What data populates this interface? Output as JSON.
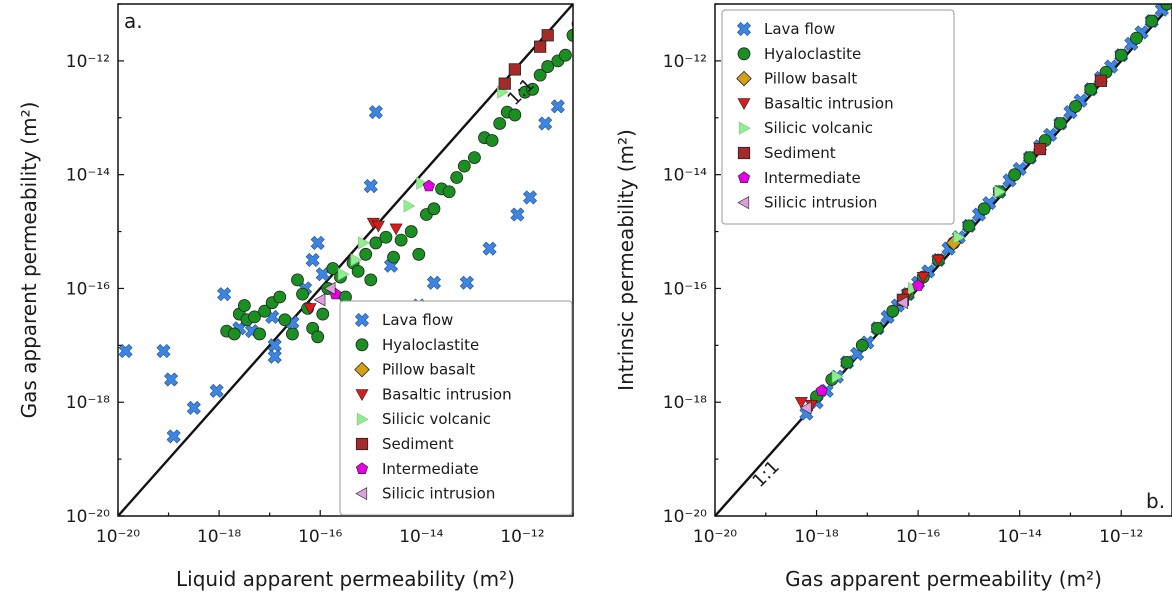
{
  "style": {
    "lava_flow": "#3d85e0",
    "hyaloclastite": "#1a8f22",
    "pillow_basalt": "#d4a017",
    "basaltic_intrusion": "#d81b1b",
    "silicic_volcanic": "#90ee90",
    "sediment": "#a52a2a",
    "intermediate": "#e600e6",
    "silicic_intrusion": "#dda0dd",
    "edge": "#1a1a1a"
  },
  "chart_data": [
    {
      "type": "scatter",
      "panel_label": "a.",
      "xlabel": "Liquid apparent permeability",
      "ylabel": "Gas apparent permeability",
      "unit": "(m²)",
      "xscale": "log",
      "yscale": "log",
      "xlim": [
        1e-20,
        1e-11
      ],
      "ylim": [
        1e-20,
        1e-11
      ],
      "xticks": [
        "10⁻²⁰",
        "10⁻¹⁸",
        "10⁻¹⁶",
        "10⁻¹⁴",
        "10⁻¹²"
      ],
      "yticks": [
        "10⁻²⁰",
        "10⁻¹⁸",
        "10⁻¹⁶",
        "10⁻¹⁴",
        "10⁻¹²"
      ],
      "reference_line": "1:1",
      "legend_position": "lower right",
      "series": [
        {
          "name": "Lava flow",
          "key": "lava_flow",
          "marker": "x",
          "points": [
            [
              -19.85,
              -17.1
            ],
            [
              -19.1,
              -17.1
            ],
            [
              -18.95,
              -17.6
            ],
            [
              -18.9,
              -18.6
            ],
            [
              -18.5,
              -18.1
            ],
            [
              -18.05,
              -17.8
            ],
            [
              -17.9,
              -16.1
            ],
            [
              -17.6,
              -16.7
            ],
            [
              -17.35,
              -16.75
            ],
            [
              -16.95,
              -16.5
            ],
            [
              -16.9,
              -17.0
            ],
            [
              -16.9,
              -17.2
            ],
            [
              -16.55,
              -16.6
            ],
            [
              -16.3,
              -16.0
            ],
            [
              -16.15,
              -15.5
            ],
            [
              -16.05,
              -15.2
            ],
            [
              -15.95,
              -15.75
            ],
            [
              -15.0,
              -14.2
            ],
            [
              -14.9,
              -12.9
            ],
            [
              -14.6,
              -15.6
            ],
            [
              -14.3,
              -16.5
            ],
            [
              -14.05,
              -16.3
            ],
            [
              -13.75,
              -15.9
            ],
            [
              -13.1,
              -15.9
            ],
            [
              -12.65,
              -15.3
            ],
            [
              -12.1,
              -14.7
            ],
            [
              -11.85,
              -14.4
            ],
            [
              -11.55,
              -13.1
            ],
            [
              -11.3,
              -12.8
            ],
            [
              -10.85,
              -13.5
            ],
            [
              -10.7,
              -12.35
            ],
            [
              -9.15,
              -11.6
            ],
            [
              -8.9,
              -11.05
            ],
            [
              -8.2,
              -9.15
            ],
            [
              -7.95,
              -12.4
            ],
            [
              -7.75,
              -12.4
            ],
            [
              -7.55,
              -12.6
            ]
          ]
        },
        {
          "name": "Hyaloclastite",
          "key": "hyaloclastite",
          "marker": "o",
          "points": [
            [
              -17.85,
              -16.75
            ],
            [
              -17.7,
              -16.8
            ],
            [
              -17.6,
              -16.45
            ],
            [
              -17.5,
              -16.3
            ],
            [
              -17.45,
              -16.55
            ],
            [
              -17.3,
              -16.5
            ],
            [
              -17.2,
              -16.8
            ],
            [
              -17.1,
              -16.4
            ],
            [
              -16.95,
              -16.25
            ],
            [
              -16.8,
              -16.15
            ],
            [
              -16.7,
              -16.55
            ],
            [
              -16.55,
              -16.8
            ],
            [
              -16.45,
              -15.85
            ],
            [
              -16.35,
              -16.1
            ],
            [
              -16.25,
              -16.35
            ],
            [
              -16.15,
              -16.7
            ],
            [
              -16.05,
              -16.85
            ],
            [
              -15.95,
              -16.45
            ],
            [
              -15.85,
              -16.0
            ],
            [
              -15.75,
              -15.65
            ],
            [
              -15.6,
              -15.8
            ],
            [
              -15.5,
              -16.15
            ],
            [
              -15.35,
              -15.55
            ],
            [
              -15.25,
              -15.7
            ],
            [
              -15.1,
              -15.4
            ],
            [
              -15.0,
              -15.85
            ],
            [
              -14.9,
              -15.2
            ],
            [
              -14.85,
              -16.35
            ],
            [
              -14.7,
              -15.1
            ],
            [
              -14.55,
              -15.45
            ],
            [
              -14.4,
              -15.15
            ],
            [
              -14.2,
              -15.0
            ],
            [
              -14.05,
              -15.4
            ],
            [
              -13.9,
              -14.7
            ],
            [
              -13.75,
              -14.6
            ],
            [
              -13.6,
              -14.25
            ],
            [
              -13.45,
              -14.3
            ],
            [
              -13.3,
              -14.05
            ],
            [
              -13.15,
              -13.85
            ],
            [
              -12.95,
              -13.7
            ],
            [
              -12.75,
              -13.35
            ],
            [
              -12.6,
              -13.4
            ],
            [
              -12.45,
              -13.1
            ],
            [
              -12.3,
              -12.9
            ],
            [
              -12.15,
              -12.95
            ],
            [
              -11.95,
              -12.55
            ],
            [
              -11.8,
              -12.5
            ],
            [
              -11.65,
              -12.25
            ],
            [
              -11.5,
              -12.1
            ],
            [
              -11.3,
              -12.0
            ],
            [
              -11.15,
              -11.9
            ],
            [
              -11.0,
              -11.55
            ],
            [
              -10.9,
              -11.35
            ],
            [
              -10.75,
              -11.1
            ],
            [
              -10.7,
              -11.0
            ],
            [
              -10.6,
              -11.25
            ],
            [
              -10.45,
              -11.2
            ],
            [
              -10.3,
              -10.85
            ],
            [
              -10.15,
              -10.7
            ],
            [
              -9.95,
              -10.45
            ],
            [
              -9.75,
              -10.35
            ],
            [
              -9.6,
              -10.1
            ],
            [
              -9.45,
              -10.0
            ],
            [
              -9.3,
              -9.8
            ],
            [
              -9.15,
              -9.7
            ],
            [
              -9.0,
              -9.45
            ],
            [
              -8.85,
              -9.35
            ],
            [
              -8.65,
              -9.15
            ],
            [
              -8.5,
              -8.95
            ],
            [
              -8.3,
              -8.85
            ],
            [
              -8.15,
              -8.55
            ],
            [
              -8.0,
              -8.45
            ],
            [
              -7.85,
              -8.3
            ],
            [
              -7.6,
              -8.1
            ],
            [
              -7.4,
              -7.85
            ],
            [
              -7.2,
              -7.6
            ]
          ]
        },
        {
          "name": "Pillow basalt",
          "key": "pillow_basalt",
          "marker": "D",
          "points": [
            [
              -10.45,
              -13.45
            ]
          ]
        },
        {
          "name": "Basaltic intrusion",
          "key": "basaltic_intrusion",
          "marker": "v",
          "points": [
            [
              -16.2,
              -16.35
            ],
            [
              -14.95,
              -14.85
            ],
            [
              -14.85,
              -14.9
            ],
            [
              -14.5,
              -14.95
            ]
          ]
        },
        {
          "name": "Silicic volcanic",
          "key": "silicic_volcanic",
          "marker": ">",
          "points": [
            [
              -15.55,
              -15.75
            ],
            [
              -15.3,
              -15.5
            ],
            [
              -15.15,
              -15.2
            ],
            [
              -14.25,
              -14.55
            ],
            [
              -14.0,
              -14.15
            ],
            [
              -12.4,
              -12.55
            ]
          ]
        },
        {
          "name": "Sediment",
          "key": "sediment",
          "marker": "s",
          "points": [
            [
              -12.35,
              -12.4
            ],
            [
              -12.15,
              -12.15
            ],
            [
              -11.65,
              -11.75
            ],
            [
              -11.5,
              -11.55
            ]
          ]
        },
        {
          "name": "Intermediate",
          "key": "intermediate",
          "marker": "p",
          "points": [
            [
              -15.7,
              -16.1
            ],
            [
              -13.85,
              -14.2
            ]
          ]
        },
        {
          "name": "Silicic intrusion",
          "key": "silicic_intrusion",
          "marker": "<",
          "points": [
            [
              -16.0,
              -16.2
            ],
            [
              -15.8,
              -16.0
            ]
          ]
        }
      ]
    },
    {
      "type": "scatter",
      "panel_label": "b.",
      "xlabel": "Gas apparent permeability",
      "ylabel": "Intrinsic permeability",
      "unit": "(m²)",
      "xscale": "log",
      "yscale": "log",
      "xlim": [
        1e-20,
        1e-11
      ],
      "ylim": [
        1e-20,
        1e-11
      ],
      "xticks": [
        "10⁻²⁰",
        "10⁻¹⁸",
        "10⁻¹⁶",
        "10⁻¹⁴",
        "10⁻¹²"
      ],
      "yticks": [
        "10⁻²⁰",
        "10⁻¹⁸",
        "10⁻¹⁶",
        "10⁻¹⁴",
        "10⁻¹²"
      ],
      "reference_line": "1:1",
      "legend_position": "upper left",
      "series": [
        {
          "name": "Lava flow",
          "key": "lava_flow",
          "marker": "x",
          "points": [
            [
              -18.2,
              -18.2
            ],
            [
              -18.0,
              -18.0
            ],
            [
              -17.8,
              -17.8
            ],
            [
              -17.6,
              -17.55
            ],
            [
              -17.4,
              -17.3
            ],
            [
              -17.2,
              -17.15
            ],
            [
              -17.0,
              -16.95
            ],
            [
              -16.8,
              -16.7
            ],
            [
              -16.6,
              -16.5
            ],
            [
              -16.4,
              -16.3
            ],
            [
              -16.2,
              -16.1
            ],
            [
              -16.0,
              -15.9
            ],
            [
              -15.8,
              -15.7
            ],
            [
              -15.6,
              -15.5
            ],
            [
              -15.4,
              -15.3
            ],
            [
              -15.2,
              -15.1
            ],
            [
              -15.0,
              -14.9
            ],
            [
              -14.8,
              -14.7
            ],
            [
              -14.6,
              -14.5
            ],
            [
              -14.4,
              -14.3
            ],
            [
              -14.2,
              -14.1
            ],
            [
              -14.0,
              -13.9
            ],
            [
              -13.8,
              -13.7
            ],
            [
              -13.6,
              -13.5
            ],
            [
              -13.4,
              -13.3
            ],
            [
              -13.2,
              -13.1
            ],
            [
              -13.0,
              -12.9
            ],
            [
              -12.8,
              -12.7
            ],
            [
              -12.6,
              -12.5
            ],
            [
              -12.4,
              -12.3
            ],
            [
              -12.2,
              -12.1
            ],
            [
              -12.0,
              -11.9
            ],
            [
              -11.8,
              -11.7
            ],
            [
              -11.6,
              -11.5
            ],
            [
              -11.4,
              -11.3
            ],
            [
              -11.2,
              -11.1
            ]
          ]
        },
        {
          "name": "Hyaloclastite",
          "key": "hyaloclastite",
          "marker": "o",
          "points": [
            [
              -18.0,
              -17.9
            ],
            [
              -17.7,
              -17.6
            ],
            [
              -17.4,
              -17.3
            ],
            [
              -17.1,
              -17.0
            ],
            [
              -16.8,
              -16.7
            ],
            [
              -16.5,
              -16.4
            ],
            [
              -16.2,
              -16.1
            ],
            [
              -15.9,
              -15.8
            ],
            [
              -15.6,
              -15.5
            ],
            [
              -15.3,
              -15.2
            ],
            [
              -15.0,
              -14.9
            ],
            [
              -14.7,
              -14.6
            ],
            [
              -14.4,
              -14.3
            ],
            [
              -14.1,
              -14.0
            ],
            [
              -13.8,
              -13.7
            ],
            [
              -13.5,
              -13.4
            ],
            [
              -13.2,
              -13.1
            ],
            [
              -12.9,
              -12.8
            ],
            [
              -12.6,
              -12.5
            ],
            [
              -12.3,
              -12.2
            ],
            [
              -12.0,
              -11.9
            ],
            [
              -11.7,
              -11.6
            ],
            [
              -11.4,
              -11.3
            ],
            [
              -11.1,
              -11.0
            ]
          ]
        },
        {
          "name": "Pillow basalt",
          "key": "pillow_basalt",
          "marker": "D",
          "points": [
            [
              -15.3,
              -15.2
            ]
          ]
        },
        {
          "name": "Basaltic intrusion",
          "key": "basaltic_intrusion",
          "marker": "v",
          "points": [
            [
              -18.3,
              -18.0
            ],
            [
              -18.1,
              -18.05
            ],
            [
              -16.2,
              -16.1
            ],
            [
              -15.9,
              -15.8
            ],
            [
              -15.6,
              -15.5
            ]
          ]
        },
        {
          "name": "Silicic volcanic",
          "key": "silicic_volcanic",
          "marker": ">",
          "points": [
            [
              -17.6,
              -17.55
            ],
            [
              -16.1,
              -16.0
            ],
            [
              -15.2,
              -15.1
            ],
            [
              -14.4,
              -14.3
            ]
          ]
        },
        {
          "name": "Sediment",
          "key": "sediment",
          "marker": "s",
          "points": [
            [
              -16.3,
              -16.2
            ],
            [
              -13.6,
              -13.55
            ],
            [
              -12.4,
              -12.35
            ]
          ]
        },
        {
          "name": "Intermediate",
          "key": "intermediate",
          "marker": "p",
          "points": [
            [
              -17.9,
              -17.8
            ],
            [
              -16.0,
              -15.95
            ]
          ]
        },
        {
          "name": "Silicic intrusion",
          "key": "silicic_intrusion",
          "marker": "<",
          "points": [
            [
              -18.2,
              -18.1
            ],
            [
              -16.3,
              -16.25
            ]
          ]
        }
      ]
    }
  ]
}
